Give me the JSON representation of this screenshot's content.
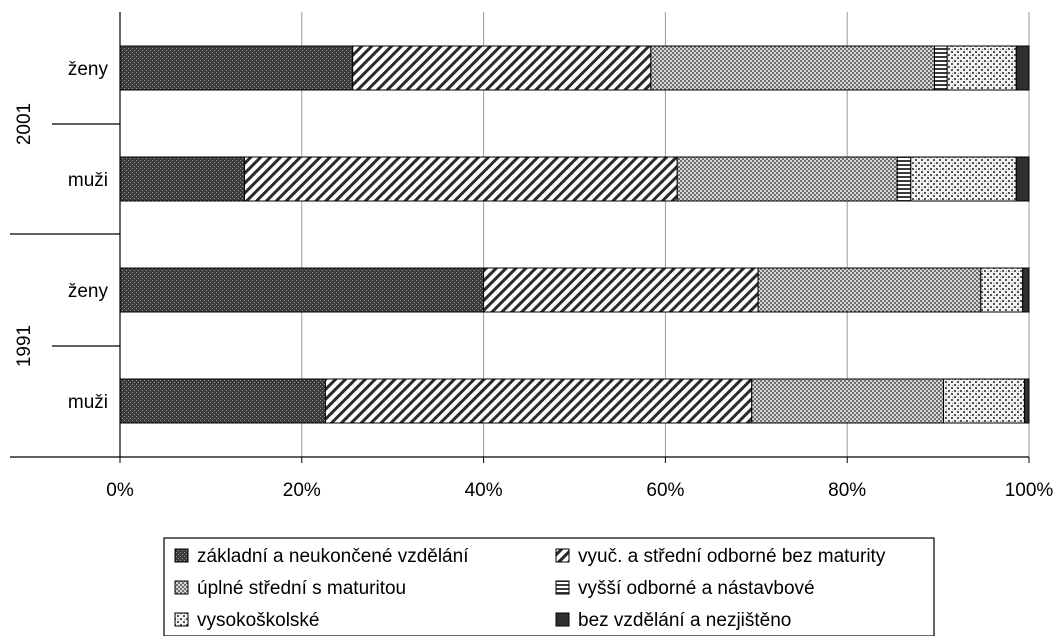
{
  "chart_data": {
    "type": "bar",
    "orientation": "horizontal",
    "stacked": "percent",
    "x_tick_labels": [
      "0%",
      "20%",
      "40%",
      "60%",
      "80%",
      "100%"
    ],
    "xlim": [
      0,
      100
    ],
    "grid": "vertical",
    "legend_position": "bottom",
    "groups": [
      {
        "label": "2001",
        "categories": [
          "ženy",
          "muži"
        ]
      },
      {
        "label": "1991",
        "categories": [
          "ženy",
          "muži"
        ]
      }
    ],
    "series": [
      {
        "name": "základní a neukončené vzdělání",
        "pattern": "dots-dark",
        "color": "#404040",
        "values": [
          25.6,
          13.7,
          40.0,
          22.6
        ]
      },
      {
        "name": "vyuč. a střední odborné bez maturity",
        "pattern": "diagonal-hatch",
        "color": "#ffffff",
        "values": [
          32.8,
          47.6,
          30.2,
          46.9
        ]
      },
      {
        "name": "úplné střední s maturitou",
        "pattern": "checker",
        "color": "#bdbdbd",
        "values": [
          31.2,
          24.2,
          24.5,
          21.1
        ]
      },
      {
        "name": "vyšší odborné a nástavbové",
        "pattern": "horizontal-lines",
        "color": "#ffffff",
        "values": [
          1.4,
          1.5,
          0.0,
          0.0
        ]
      },
      {
        "name": "vysokoškolské",
        "pattern": "dots-light",
        "color": "#e6e6e6",
        "values": [
          7.6,
          11.6,
          4.6,
          8.9
        ]
      },
      {
        "name": "bez vzdělání a nezjištěno",
        "pattern": "solid-dark",
        "color": "#303030",
        "values": [
          1.4,
          1.4,
          0.7,
          0.5
        ]
      }
    ]
  }
}
